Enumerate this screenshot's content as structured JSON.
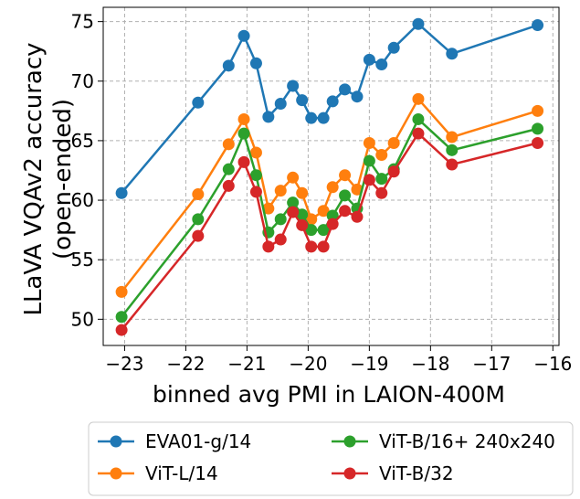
{
  "chart_data": {
    "type": "line",
    "title": "",
    "xlabel": "binned avg PMI in LAION-400M",
    "ylabel_line1": "LLaVA VQAv2 accuracy",
    "ylabel_line2": "(open-ended)",
    "xlim": [
      -23.35,
      -15.9
    ],
    "ylim": [
      47.8,
      76.2
    ],
    "xticks": [
      -23,
      -22,
      -21,
      -20,
      -19,
      -18,
      -17,
      -16
    ],
    "xtick_labels": [
      "−23",
      "−22",
      "−21",
      "−20",
      "−19",
      "−18",
      "−17",
      "−16"
    ],
    "yticks": [
      50,
      55,
      60,
      65,
      70,
      75
    ],
    "ytick_labels": [
      "50",
      "55",
      "60",
      "65",
      "70",
      "75"
    ],
    "grid": true,
    "legend_position": "below",
    "x": [
      -23.05,
      -21.8,
      -21.3,
      -21.05,
      -20.85,
      -20.65,
      -20.45,
      -20.25,
      -20.1,
      -19.95,
      -19.75,
      -19.6,
      -19.4,
      -19.2,
      -19.0,
      -18.8,
      -18.6,
      -18.2,
      -17.65,
      -16.25
    ],
    "series": [
      {
        "name": "EVA01-g/14",
        "color": "#1f77b4",
        "values": [
          60.6,
          68.2,
          71.3,
          73.8,
          71.5,
          67.0,
          68.1,
          69.6,
          68.4,
          66.9,
          66.9,
          68.3,
          69.3,
          68.7,
          71.8,
          71.4,
          72.8,
          74.8,
          72.3,
          74.7
        ]
      },
      {
        "name": "ViT-L/14",
        "color": "#ff7f0e",
        "values": [
          52.3,
          60.5,
          64.7,
          66.8,
          64.0,
          59.3,
          60.8,
          61.9,
          60.6,
          58.4,
          59.1,
          61.1,
          62.1,
          60.9,
          64.8,
          63.8,
          64.8,
          68.5,
          65.3,
          67.5
        ]
      },
      {
        "name": "ViT-B/16+ 240x240",
        "color": "#2ca02c",
        "values": [
          50.2,
          58.4,
          62.6,
          65.6,
          62.1,
          57.3,
          58.4,
          59.8,
          58.8,
          57.5,
          57.5,
          58.7,
          60.4,
          59.3,
          63.3,
          61.8,
          62.6,
          66.8,
          64.2,
          66.0
        ]
      },
      {
        "name": "ViT-B/32",
        "color": "#d62728",
        "values": [
          49.1,
          57.0,
          61.2,
          63.2,
          60.7,
          56.1,
          56.7,
          59.0,
          57.9,
          56.1,
          56.1,
          58.0,
          59.1,
          58.6,
          61.7,
          60.6,
          62.4,
          65.6,
          63.0,
          64.8
        ]
      }
    ]
  }
}
